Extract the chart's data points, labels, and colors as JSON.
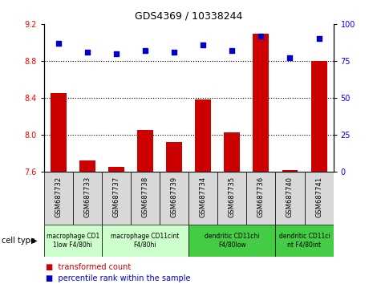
{
  "title": "GDS4369 / 10338244",
  "samples": [
    "GSM687732",
    "GSM687733",
    "GSM687737",
    "GSM687738",
    "GSM687739",
    "GSM687734",
    "GSM687735",
    "GSM687736",
    "GSM687740",
    "GSM687741"
  ],
  "transformed_count": [
    8.45,
    7.72,
    7.65,
    8.05,
    7.92,
    8.38,
    8.03,
    9.1,
    7.62,
    8.8
  ],
  "percentile_rank": [
    87,
    81,
    80,
    82,
    81,
    86,
    82,
    92,
    77,
    90
  ],
  "ylim_left": [
    7.6,
    9.2
  ],
  "ylim_right": [
    0,
    100
  ],
  "yticks_left": [
    7.6,
    8.0,
    8.4,
    8.8,
    9.2
  ],
  "yticks_right": [
    0,
    25,
    50,
    75,
    100
  ],
  "bar_color": "#cc0000",
  "dot_color": "#0000cc",
  "cell_groups": [
    {
      "label": "macrophage CD1\n1low F4/80hi",
      "start": 0,
      "end": 2,
      "color": "#ccffcc"
    },
    {
      "label": "macrophage CD11cint\nF4/80hi",
      "start": 2,
      "end": 5,
      "color": "#ccffcc"
    },
    {
      "label": "dendritic CD11chi\nF4/80low",
      "start": 5,
      "end": 8,
      "color": "#44cc44"
    },
    {
      "label": "dendritic CD11ci\nnt F4/80int",
      "start": 8,
      "end": 10,
      "color": "#44cc44"
    }
  ],
  "legend_bar_label": "transformed count",
  "legend_dot_label": "percentile rank within the sample",
  "cell_type_label": "cell type",
  "tick_bg_color": "#d8d8d8"
}
